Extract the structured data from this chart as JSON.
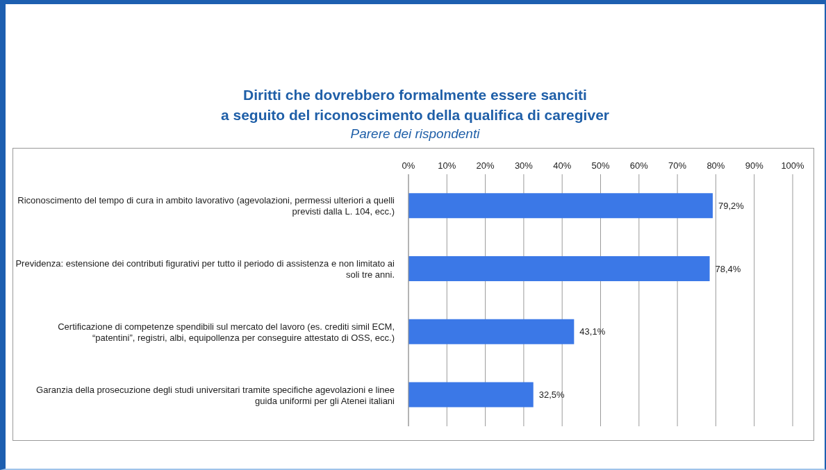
{
  "chart_data": {
    "type": "bar",
    "orientation": "horizontal",
    "title": "Diritti che dovrebbero formalmente essere sanciti\na seguito del riconoscimento della qualifica di caregiver",
    "subtitle": "Parere dei rispondenti",
    "categories": [
      "Riconoscimento del tempo di cura in ambito lavorativo (agevolazioni, permessi ulteriori a quelli previsti dalla L. 104, ecc.)",
      "Previdenza: estensione dei contributi figurativi per tutto il periodo di assistenza e non limitato ai soli tre anni.",
      "Certificazione di competenze spendibili sul mercato del lavoro (es. crediti simil ECM, “patentini”, registri, albi, equipollenza per conseguire attestato di OSS, ecc.)",
      "Garanzia della prosecuzione degli studi universitari tramite specifiche agevolazioni e linee guida uniformi per gli Atenei italiani"
    ],
    "values": [
      79.2,
      78.4,
      43.1,
      32.5
    ],
    "value_labels": [
      "79,2%",
      "78,4%",
      "43,1%",
      "32,5%"
    ],
    "color": "#3b78e7",
    "xlim": [
      0,
      100
    ],
    "xticks": [
      {
        "value": 0,
        "label": "0%"
      },
      {
        "value": 10,
        "label": "10%"
      },
      {
        "value": 20,
        "label": "20%"
      },
      {
        "value": 30,
        "label": "30%"
      },
      {
        "value": 40,
        "label": "40%"
      },
      {
        "value": 50,
        "label": "50%"
      },
      {
        "value": 60,
        "label": "60%"
      },
      {
        "value": 70,
        "label": "70%"
      },
      {
        "value": 80,
        "label": "80%"
      },
      {
        "value": 90,
        "label": "90%"
      },
      {
        "value": 100,
        "label": "100%"
      }
    ],
    "grid": "x",
    "legend": false
  }
}
